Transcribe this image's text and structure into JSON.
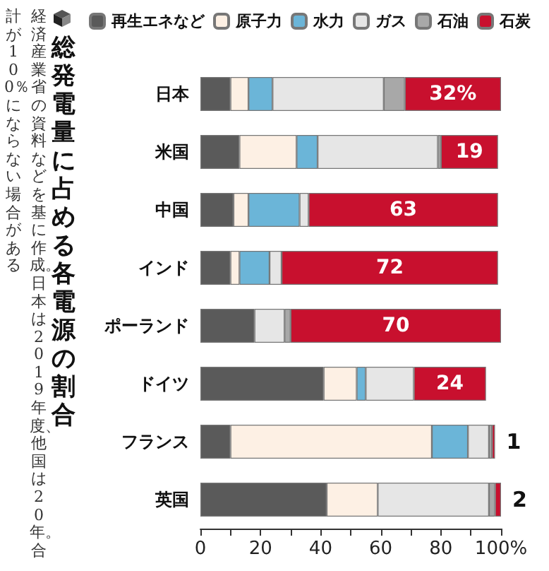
{
  "chart_data": {
    "type": "bar",
    "orientation": "horizontal",
    "stacked": true,
    "title": "総発電量に占める各電源の割合",
    "annotations": [
      "経済産業省の資料などを基に作成。日本は2019年度、他国は20年。合計が100％にならない場合がある"
    ],
    "categories": [
      "日本",
      "米国",
      "中国",
      "インド",
      "ポーランド",
      "ドイツ",
      "フランス",
      "英国"
    ],
    "series": [
      {
        "name": "再生エネなど",
        "color": "#5a5a5a",
        "values": [
          10,
          13,
          11,
          10,
          18,
          41,
          10,
          42
        ]
      },
      {
        "name": "原子力",
        "color": "#fdf0e4",
        "values": [
          6,
          19,
          5,
          3,
          null,
          11,
          67,
          17
        ]
      },
      {
        "name": "水力",
        "color": "#6bb5d8",
        "values": [
          8,
          7,
          17,
          10,
          null,
          3,
          12,
          null
        ]
      },
      {
        "name": "ガス",
        "color": "#e6e6e6",
        "values": [
          37,
          40,
          3,
          4,
          10,
          16,
          7,
          37
        ]
      },
      {
        "name": "石油",
        "color": "#a8a8a8",
        "values": [
          7,
          1,
          null,
          null,
          2,
          null,
          1,
          2
        ]
      },
      {
        "name": "石炭",
        "color": "#c8102e",
        "values": [
          32,
          19,
          63,
          72,
          70,
          24,
          1,
          2
        ],
        "value_labels": [
          "32%",
          "19",
          "63",
          "72",
          "70",
          "24",
          "1",
          "2"
        ]
      }
    ],
    "xlim": [
      0,
      100
    ],
    "xticks": [
      0,
      {
        "value": 10,
        "label": null
      },
      20,
      {
        "value": 30,
        "label": null
      },
      40,
      {
        "value": 50,
        "label": null
      },
      60,
      {
        "value": 70,
        "label": null
      },
      80,
      {
        "value": 90,
        "label": null
      },
      {
        "value": 100,
        "label": "100%"
      }
    ],
    "grid": false,
    "legend": "top"
  }
}
